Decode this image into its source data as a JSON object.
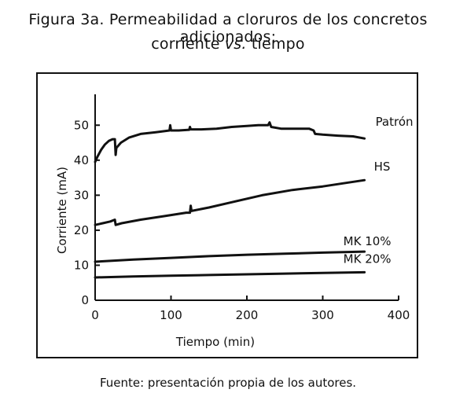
{
  "title_line1": "Figura 3a. Permeabilidad a cloruros de los concretos adicionados:",
  "title_line2_prefix": "corriente ",
  "title_line2_vs": "vs.",
  "title_line2_suffix": " tiempo",
  "source": "Fuente: presentación propia de los autores.",
  "chart_data": {
    "type": "line",
    "xlabel": "Tiempo (min)",
    "ylabel": "Corriente (mA)",
    "xlim": [
      0,
      400
    ],
    "ylim": [
      0,
      55
    ],
    "xticks": [
      0,
      100,
      200,
      300,
      400
    ],
    "yticks": [
      0,
      10,
      20,
      30,
      40,
      50
    ],
    "grid": false,
    "series": [
      {
        "name": "Patrón",
        "color": "#111111",
        "x": [
          0,
          3,
          8,
          13,
          18,
          23,
          26,
          27,
          28,
          34,
          45,
          60,
          80,
          98,
          99,
          100,
          110,
          124,
          125,
          126,
          140,
          160,
          180,
          200,
          215,
          228,
          230,
          232,
          245,
          265,
          282,
          288,
          290,
          300,
          320,
          340,
          355
        ],
        "y": [
          39.5,
          41,
          43,
          44.5,
          45.5,
          46,
          46,
          41.5,
          43.5,
          45,
          46.5,
          47.5,
          48,
          48.5,
          50,
          48.5,
          48.5,
          48.7,
          49.5,
          48.8,
          48.8,
          49,
          49.5,
          49.8,
          50,
          50,
          50.8,
          49.5,
          49,
          49,
          49,
          48.5,
          47.5,
          47.3,
          47,
          46.8,
          46.2
        ]
      },
      {
        "name": "HS",
        "color": "#111111",
        "x": [
          0,
          10,
          20,
          26,
          27,
          35,
          60,
          90,
          120,
          125,
          126,
          127,
          150,
          180,
          220,
          260,
          300,
          330,
          355
        ],
        "y": [
          21.5,
          22,
          22.5,
          23,
          21.5,
          22,
          23,
          24,
          25,
          25,
          27,
          25.5,
          26.5,
          28,
          30,
          31.5,
          32.5,
          33.5,
          34.3
        ]
      },
      {
        "name": "MK 10%",
        "color": "#111111",
        "x": [
          0,
          50,
          100,
          150,
          200,
          250,
          300,
          355
        ],
        "y": [
          11,
          11.6,
          12.1,
          12.6,
          13,
          13.3,
          13.6,
          13.9
        ]
      },
      {
        "name": "MK 20%",
        "color": "#111111",
        "x": [
          0,
          50,
          100,
          150,
          200,
          250,
          300,
          355
        ],
        "y": [
          6.5,
          6.8,
          7,
          7.2,
          7.4,
          7.6,
          7.8,
          8
        ]
      }
    ]
  }
}
